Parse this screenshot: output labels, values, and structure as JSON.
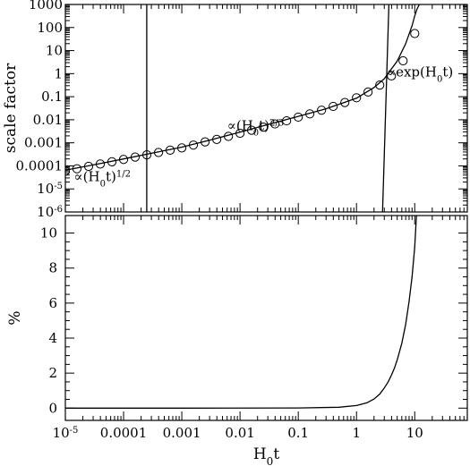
{
  "chart_data": [
    {
      "type": "line",
      "panel": "top",
      "xlabel": "",
      "ylabel": "scale factor",
      "x_scale": "log",
      "y_scale": "log",
      "xlim": [
        1e-05,
        80
      ],
      "ylim": [
        1e-06,
        1000
      ],
      "y_tick_labels": [
        {
          "value": 1000,
          "label": "1000"
        },
        {
          "value": 100,
          "label": "100"
        },
        {
          "value": 10,
          "label": "10"
        },
        {
          "value": 1,
          "label": "1"
        },
        {
          "value": 0.1,
          "label": "0.1"
        },
        {
          "value": 0.01,
          "label": "0.01"
        },
        {
          "value": 0.001,
          "label": "0.001"
        },
        {
          "value": 0.0001,
          "label": "0.0001"
        },
        {
          "value": 1e-05,
          "label": "10",
          "sup": "-5"
        },
        {
          "value": 1e-06,
          "label": "10",
          "sup": "-6"
        }
      ],
      "series": [
        {
          "style": "line",
          "x": [
            1e-05,
            3e-05,
            0.0001,
            0.0003,
            0.001,
            0.003,
            0.01,
            0.03,
            0.1,
            0.3,
            1,
            2,
            3,
            5,
            7,
            9,
            10,
            11,
            12
          ],
          "y": [
            6.5e-05,
            0.00011,
            0.0002,
            0.00035,
            0.00065,
            0.0013,
            0.0029,
            0.0062,
            0.014,
            0.03,
            0.086,
            0.25,
            0.6,
            3.5,
            20,
            120,
            320,
            650,
            1000
          ]
        },
        {
          "style": "markers",
          "marker": "circle",
          "x": [
            1e-05,
            1.58e-05,
            2.51e-05,
            3.98e-05,
            6.31e-05,
            0.0001,
            0.000158,
            0.000251,
            0.000398,
            0.000631,
            0.001,
            0.00158,
            0.00251,
            0.00398,
            0.00631,
            0.01,
            0.0158,
            0.0251,
            0.0398,
            0.0631,
            0.1,
            0.158,
            0.251,
            0.398,
            0.631,
            1,
            1.58,
            2.51,
            3.98,
            6.31,
            10
          ],
          "y": [
            6e-05,
            7.5e-05,
            9.5e-05,
            0.00012,
            0.00015,
            0.00019,
            0.00024,
            0.0003,
            0.00038,
            0.00048,
            0.0006,
            0.0008,
            0.0011,
            0.0014,
            0.0019,
            0.0026,
            0.0035,
            0.0048,
            0.0066,
            0.009,
            0.013,
            0.018,
            0.026,
            0.038,
            0.056,
            0.09,
            0.16,
            0.32,
            0.8,
            3.6,
            55
          ]
        },
        {
          "style": "line",
          "x": [
            0.00025,
            0.00025
          ],
          "y": [
            1e-06,
            1000
          ]
        },
        {
          "style": "line",
          "x": [
            2.8,
            3.6
          ],
          "y": [
            1e-06,
            1000
          ]
        }
      ],
      "annotations": [
        {
          "text": "∝(H",
          "sub": "0",
          "tail": "t)",
          "sup": "1/2",
          "x": 1.4e-05,
          "y": 2.2e-05
        },
        {
          "text": "∝(H",
          "sub": "0",
          "tail": "t)",
          "sup": "2/3",
          "x": 0.006,
          "y": 0.0035
        },
        {
          "text": "∝exp(H",
          "sub": "0",
          "tail": "t)",
          "x": 3.3,
          "y": 0.75
        }
      ]
    },
    {
      "type": "line",
      "panel": "bottom",
      "xlabel": "H",
      "xlabel_sub": "0",
      "xlabel_tail": "t",
      "ylabel": "%",
      "x_scale": "log",
      "y_scale": "linear",
      "xlim": [
        1e-05,
        80
      ],
      "ylim": [
        -0.7,
        11
      ],
      "x_tick_labels": [
        {
          "value": 1e-05,
          "label": "10",
          "sup": "-5"
        },
        {
          "value": 0.0001,
          "label": "0.0001"
        },
        {
          "value": 0.001,
          "label": "0.001"
        },
        {
          "value": 0.01,
          "label": "0.01"
        },
        {
          "value": 0.1,
          "label": "0.1"
        },
        {
          "value": 1,
          "label": "1"
        },
        {
          "value": 10,
          "label": "10"
        }
      ],
      "y_tick_labels": [
        {
          "value": 0,
          "label": "0"
        },
        {
          "value": 2,
          "label": "2"
        },
        {
          "value": 4,
          "label": "4"
        },
        {
          "value": 6,
          "label": "6"
        },
        {
          "value": 8,
          "label": "8"
        },
        {
          "value": 10,
          "label": "10"
        }
      ],
      "series": [
        {
          "style": "line",
          "x": [
            1e-05,
            0.001,
            0.1,
            0.5,
            1,
            1.5,
            2,
            2.5,
            3,
            3.5,
            4,
            4.5,
            5,
            6,
            7,
            8,
            9,
            10,
            10.7
          ],
          "y": [
            0,
            0,
            0.01,
            0.05,
            0.15,
            0.3,
            0.52,
            0.8,
            1.15,
            1.5,
            1.9,
            2.3,
            2.75,
            3.7,
            4.8,
            6.1,
            7.5,
            9.2,
            11
          ]
        }
      ]
    }
  ]
}
